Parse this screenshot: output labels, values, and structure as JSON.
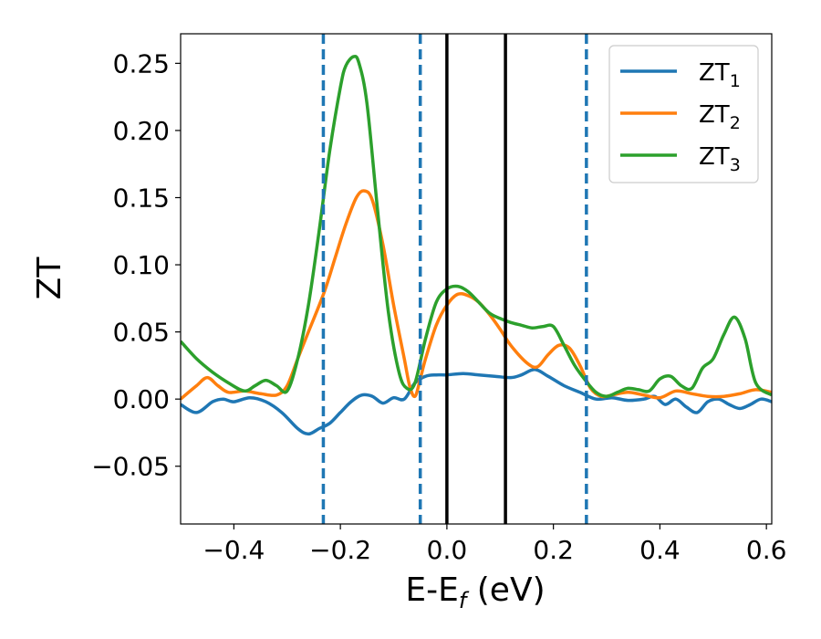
{
  "chart_data": {
    "type": "line",
    "title": "",
    "xlabel": "E-E_f (eV)",
    "xlabel_main": "E-E",
    "xlabel_sub": "f",
    "xlabel_unit": " (eV)",
    "ylabel": "ZT",
    "xlim": [
      -0.5,
      0.61
    ],
    "ylim": [
      -0.093,
      0.272
    ],
    "xticks": [
      -0.4,
      -0.2,
      0.0,
      0.2,
      0.4,
      0.6
    ],
    "xtick_labels": [
      "−0.4",
      "−0.2",
      "0.0",
      "0.2",
      "0.4",
      "0.6"
    ],
    "yticks": [
      -0.05,
      0.0,
      0.05,
      0.1,
      0.15,
      0.2,
      0.25
    ],
    "ytick_labels": [
      "−0.05",
      "0.00",
      "0.05",
      "0.10",
      "0.15",
      "0.20",
      "0.25"
    ],
    "grid": false,
    "legend_position": "top-right",
    "vlines_dashed": [
      -0.232,
      -0.05,
      0.262
    ],
    "vlines_solid": [
      0.0,
      0.11
    ],
    "series": [
      {
        "name": "ZT_1",
        "legend_main": "ZT",
        "legend_sub": "1",
        "color": "#1f77b4",
        "x": [
          -0.5,
          -0.47,
          -0.44,
          -0.42,
          -0.4,
          -0.37,
          -0.34,
          -0.31,
          -0.28,
          -0.26,
          -0.24,
          -0.22,
          -0.2,
          -0.18,
          -0.16,
          -0.14,
          -0.12,
          -0.1,
          -0.08,
          -0.06,
          -0.04,
          -0.02,
          0.0,
          0.03,
          0.06,
          0.09,
          0.12,
          0.14,
          0.165,
          0.19,
          0.22,
          0.25,
          0.28,
          0.31,
          0.34,
          0.37,
          0.39,
          0.41,
          0.43,
          0.45,
          0.47,
          0.49,
          0.51,
          0.53,
          0.55,
          0.57,
          0.59,
          0.61
        ],
        "y": [
          -0.004,
          -0.01,
          -0.002,
          0.0,
          -0.002,
          0.001,
          -0.002,
          -0.01,
          -0.022,
          -0.026,
          -0.022,
          -0.018,
          -0.01,
          -0.002,
          0.003,
          0.002,
          -0.003,
          0.001,
          0.0,
          0.012,
          0.017,
          0.018,
          0.018,
          0.019,
          0.018,
          0.017,
          0.016,
          0.018,
          0.022,
          0.017,
          0.01,
          0.005,
          0.0,
          0.001,
          -0.001,
          0.0,
          0.002,
          -0.004,
          0.0,
          -0.006,
          -0.01,
          -0.002,
          0.0,
          -0.004,
          -0.007,
          -0.004,
          0.0,
          -0.002
        ]
      },
      {
        "name": "ZT_2",
        "legend_main": "ZT",
        "legend_sub": "2",
        "color": "#ff7f0e",
        "x": [
          -0.5,
          -0.47,
          -0.45,
          -0.43,
          -0.41,
          -0.38,
          -0.35,
          -0.32,
          -0.3,
          -0.28,
          -0.26,
          -0.23,
          -0.21,
          -0.19,
          -0.17,
          -0.155,
          -0.14,
          -0.12,
          -0.1,
          -0.08,
          -0.07,
          -0.06,
          -0.05,
          -0.04,
          -0.02,
          0.0,
          0.02,
          0.04,
          0.06,
          0.08,
          0.1,
          0.12,
          0.15,
          0.17,
          0.19,
          0.21,
          0.23,
          0.25,
          0.27,
          0.29,
          0.31,
          0.34,
          0.37,
          0.4,
          0.43,
          0.46,
          0.49,
          0.52,
          0.55,
          0.58,
          0.61
        ],
        "y": [
          0.0,
          0.01,
          0.016,
          0.01,
          0.005,
          0.006,
          0.004,
          0.003,
          0.01,
          0.03,
          0.05,
          0.08,
          0.105,
          0.13,
          0.15,
          0.155,
          0.148,
          0.115,
          0.07,
          0.03,
          0.01,
          0.002,
          0.015,
          0.03,
          0.055,
          0.07,
          0.078,
          0.077,
          0.072,
          0.063,
          0.052,
          0.04,
          0.027,
          0.024,
          0.033,
          0.04,
          0.038,
          0.025,
          0.008,
          0.002,
          0.003,
          0.005,
          0.003,
          0.001,
          0.006,
          0.004,
          0.002,
          0.002,
          0.004,
          0.007,
          0.005
        ]
      },
      {
        "name": "ZT_3",
        "legend_main": "ZT",
        "legend_sub": "3",
        "color": "#2ca02c",
        "x": [
          -0.5,
          -0.47,
          -0.44,
          -0.41,
          -0.38,
          -0.36,
          -0.34,
          -0.32,
          -0.3,
          -0.28,
          -0.26,
          -0.24,
          -0.22,
          -0.2,
          -0.19,
          -0.175,
          -0.165,
          -0.15,
          -0.13,
          -0.11,
          -0.09,
          -0.075,
          -0.06,
          -0.04,
          -0.02,
          0.0,
          0.02,
          0.04,
          0.06,
          0.08,
          0.1,
          0.12,
          0.14,
          0.16,
          0.18,
          0.2,
          0.22,
          0.24,
          0.26,
          0.28,
          0.3,
          0.32,
          0.34,
          0.36,
          0.38,
          0.4,
          0.42,
          0.44,
          0.46,
          0.48,
          0.5,
          0.52,
          0.54,
          0.56,
          0.58,
          0.61
        ],
        "y": [
          0.043,
          0.03,
          0.02,
          0.012,
          0.006,
          0.01,
          0.014,
          0.01,
          0.006,
          0.03,
          0.07,
          0.125,
          0.185,
          0.232,
          0.248,
          0.255,
          0.25,
          0.22,
          0.14,
          0.065,
          0.02,
          0.008,
          0.012,
          0.045,
          0.072,
          0.082,
          0.084,
          0.08,
          0.072,
          0.064,
          0.06,
          0.057,
          0.055,
          0.053,
          0.054,
          0.054,
          0.04,
          0.025,
          0.014,
          0.005,
          0.002,
          0.005,
          0.008,
          0.007,
          0.006,
          0.015,
          0.017,
          0.01,
          0.008,
          0.023,
          0.03,
          0.048,
          0.061,
          0.045,
          0.012,
          0.003
        ]
      }
    ]
  }
}
